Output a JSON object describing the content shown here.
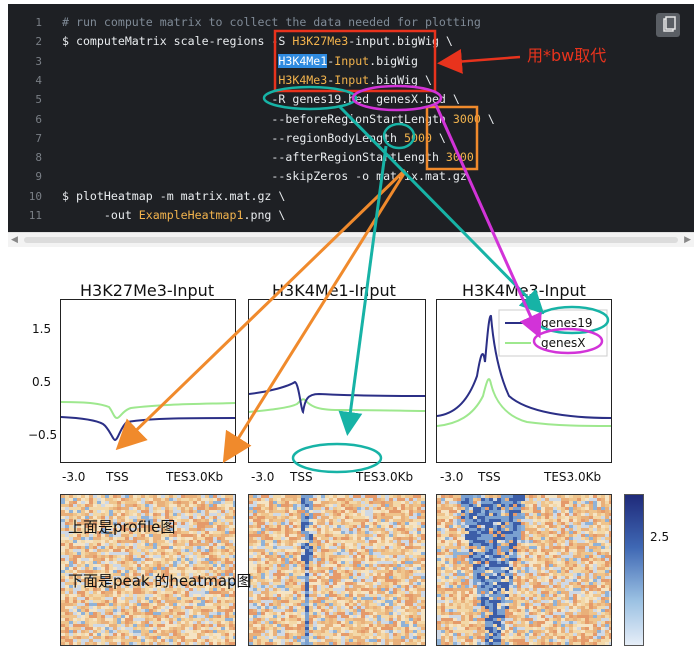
{
  "code": {
    "line_numbers": [
      "1",
      "2",
      "3",
      "4",
      "5",
      "6",
      "7",
      "8",
      "9",
      "10",
      "11"
    ],
    "lines": [
      [
        {
          "t": "# run compute matrix to collect the data needed for plotting",
          "c": "com"
        }
      ],
      [
        {
          "t": "$ computeMatrix scale-regions -S "
        },
        {
          "t": "H3K27Me3",
          "c": "str"
        },
        {
          "t": "-input.bigWig \\"
        }
      ],
      [
        {
          "t": "                               "
        },
        {
          "t": "H3K4Me1",
          "c": "sel"
        },
        {
          "t": "-"
        },
        {
          "t": "Input",
          "c": "str"
        },
        {
          "t": ".bigWig"
        }
      ],
      [
        {
          "t": "                               "
        },
        {
          "t": "H3K4Me3",
          "c": "str"
        },
        {
          "t": "-"
        },
        {
          "t": "Input",
          "c": "str"
        },
        {
          "t": ".bigWig \\"
        }
      ],
      [
        {
          "t": "                              -R genes19.bed genesX.bed \\"
        }
      ],
      [
        {
          "t": "                              --beforeRegionStartLength "
        },
        {
          "t": "3000",
          "c": "str"
        },
        {
          "t": " \\"
        }
      ],
      [
        {
          "t": "                              --regionBodyLength "
        },
        {
          "t": "5000",
          "c": "str"
        },
        {
          "t": " \\"
        }
      ],
      [
        {
          "t": "                              --afterRegionStartLength "
        },
        {
          "t": "3000",
          "c": "str"
        }
      ],
      [
        {
          "t": "                              --skipZeros -o matrix.mat.gz"
        }
      ],
      [
        {
          "t": "$ plotHeatmap -m matrix.mat.gz \\"
        }
      ],
      [
        {
          "t": "      -out "
        },
        {
          "t": "ExampleHeatmap1",
          "c": "str"
        },
        {
          "t": ".png \\"
        }
      ]
    ]
  },
  "annotation_note": "用*bw取代",
  "scroll_arrows": {
    "left": "◀",
    "right": "▶"
  },
  "panels": [
    {
      "title": "H3K27Me3-Input"
    },
    {
      "title": "H3K4Me1-Input"
    },
    {
      "title": "H3K4Me3-Input"
    }
  ],
  "y_ticks": [
    "1.5",
    "0.5",
    "−0.5"
  ],
  "x_ticks": [
    "-3.0",
    "TSS",
    "TES3.0Kb"
  ],
  "legend": [
    "genes19",
    "genesX"
  ],
  "colorbar_tick": "2.5",
  "heatmap_notes": [
    "上面是profile图",
    "下面是peak 的heatmap图"
  ],
  "colors": {
    "navy": "#2b2f86",
    "light_green": "#9ee88e",
    "annot_red": "#e8331d",
    "annot_orange": "#f08a2c",
    "annot_teal": "#17b3a6",
    "annot_magenta": "#d233d8"
  }
}
